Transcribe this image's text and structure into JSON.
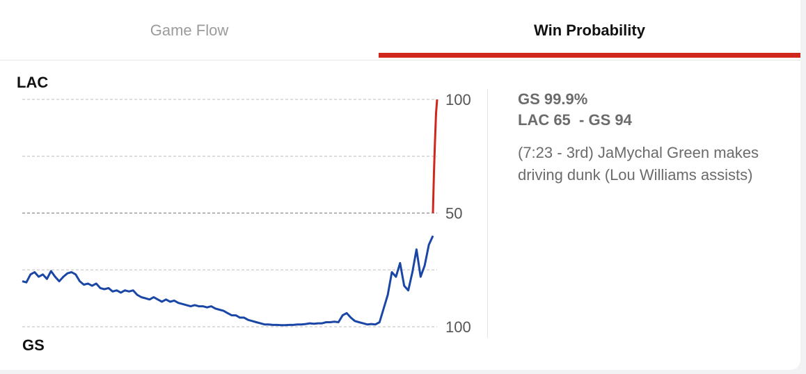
{
  "tabs": [
    {
      "label": "Game Flow",
      "active": false
    },
    {
      "label": "Win Probability",
      "active": true
    }
  ],
  "colors": {
    "accent": "#d0271d",
    "home_line": "#1a46a6",
    "away_line": "#d0271d"
  },
  "chart_data": {
    "type": "line",
    "title": "",
    "top_team": "LAC",
    "bottom_team": "GS",
    "y_ticks": [
      {
        "value": 100,
        "label": "100"
      },
      {
        "value": 50,
        "label": "50"
      },
      {
        "value": 0,
        "label": "100"
      }
    ],
    "ylim": [
      0,
      100
    ],
    "xlim": [
      0,
      100
    ],
    "grid": true,
    "series": [
      {
        "color": "#1a46a6",
        "points": [
          [
            0,
            20
          ],
          [
            1,
            19.5
          ],
          [
            2,
            23
          ],
          [
            3,
            24
          ],
          [
            4,
            22
          ],
          [
            5,
            23
          ],
          [
            6,
            21
          ],
          [
            7,
            24.5
          ],
          [
            8,
            22
          ],
          [
            9,
            20
          ],
          [
            10,
            22
          ],
          [
            11,
            23.5
          ],
          [
            12,
            24
          ],
          [
            13,
            23
          ],
          [
            14,
            20
          ],
          [
            15,
            18.5
          ],
          [
            16,
            19
          ],
          [
            17,
            18
          ],
          [
            18,
            19
          ],
          [
            19,
            17
          ],
          [
            20,
            16.5
          ],
          [
            21,
            17
          ],
          [
            22,
            15.5
          ],
          [
            23,
            16
          ],
          [
            24,
            15
          ],
          [
            25,
            16
          ],
          [
            26,
            15.5
          ],
          [
            27,
            16
          ],
          [
            28,
            14
          ],
          [
            29,
            13
          ],
          [
            30,
            12.5
          ],
          [
            31,
            12
          ],
          [
            32,
            13
          ],
          [
            33,
            12
          ],
          [
            34,
            11
          ],
          [
            35,
            12
          ],
          [
            36,
            11
          ],
          [
            37,
            11.5
          ],
          [
            38,
            10.5
          ],
          [
            39,
            10
          ],
          [
            40,
            9.5
          ],
          [
            41,
            9
          ],
          [
            42,
            9.5
          ],
          [
            43,
            9
          ],
          [
            44,
            9
          ],
          [
            45,
            8.5
          ],
          [
            46,
            9
          ],
          [
            47,
            8
          ],
          [
            48,
            7.5
          ],
          [
            49,
            7
          ],
          [
            50,
            6
          ],
          [
            51,
            5
          ],
          [
            52,
            5
          ],
          [
            53,
            4
          ],
          [
            54,
            4
          ],
          [
            55,
            3
          ],
          [
            56,
            2.5
          ],
          [
            57,
            2
          ],
          [
            58,
            1.5
          ],
          [
            59,
            1
          ],
          [
            60,
            1
          ],
          [
            61,
            0.8
          ],
          [
            62,
            0.8
          ],
          [
            63,
            0.7
          ],
          [
            64,
            0.7
          ],
          [
            65,
            0.8
          ],
          [
            66,
            0.8
          ],
          [
            67,
            1
          ],
          [
            68,
            1
          ],
          [
            69,
            1.2
          ],
          [
            70,
            1.5
          ],
          [
            71,
            1.3
          ],
          [
            72,
            1.5
          ],
          [
            73,
            1.5
          ],
          [
            74,
            2
          ],
          [
            75,
            2
          ],
          [
            76,
            2.2
          ],
          [
            77,
            2
          ],
          [
            78,
            5
          ],
          [
            79,
            6
          ],
          [
            80,
            4
          ],
          [
            81,
            2.5
          ],
          [
            82,
            2
          ],
          [
            83,
            1.5
          ],
          [
            84,
            1
          ],
          [
            85,
            1.2
          ],
          [
            86,
            1
          ],
          [
            87,
            2
          ],
          [
            88,
            8
          ],
          [
            89,
            14
          ],
          [
            90,
            24
          ],
          [
            91,
            22
          ],
          [
            92,
            28
          ],
          [
            93,
            18
          ],
          [
            94,
            16
          ],
          [
            95,
            24
          ],
          [
            96,
            34
          ],
          [
            97,
            22
          ],
          [
            98,
            27
          ],
          [
            99,
            36
          ],
          [
            100,
            40
          ]
        ]
      },
      {
        "color": "#d0271d",
        "points": [
          [
            100,
            50
          ],
          [
            101,
            68
          ],
          [
            102,
            82
          ],
          [
            103,
            94
          ],
          [
            104,
            100
          ]
        ]
      }
    ]
  },
  "info": {
    "probability": "GS 99.9%",
    "score": "LAC 65  - GS 94",
    "play": "(7:23 - 3rd) JaMychal Green makes driving dunk (Lou Williams assists)"
  }
}
